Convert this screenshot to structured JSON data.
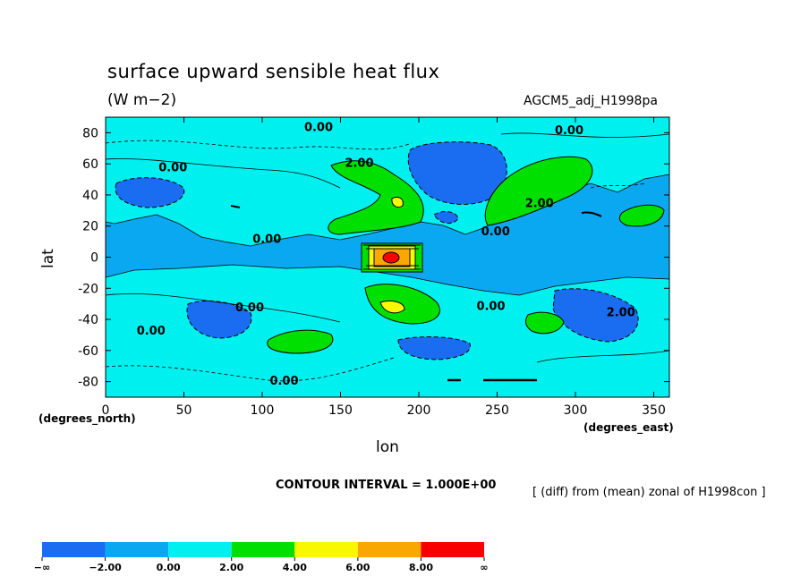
{
  "title": "surface upward sensible heat flux",
  "units": "(W m−2)",
  "run_name": "AGCM5_adj_H1998pa",
  "x_name": "lon",
  "x_unit": "(degrees_east)",
  "y_name": "lat",
  "y_unit": "(degrees_north)",
  "contour_interval_text": "CONTOUR INTERVAL = 1.000E+00",
  "note": "[ (diff) from (mean) zonal of H1998con ]",
  "chart_data": {
    "type": "heatmap",
    "title": "surface upward sensible heat flux",
    "units": "W m−2",
    "xlabel": "lon",
    "ylabel": "lat",
    "xlim": [
      0,
      360
    ],
    "ylim": [
      -90,
      90
    ],
    "x_ticks": [
      0,
      50,
      100,
      150,
      200,
      250,
      300,
      350
    ],
    "y_ticks": [
      80,
      60,
      40,
      20,
      0,
      -20,
      -40,
      -60,
      -80
    ],
    "contour_interval": 1.0,
    "contour_labels": [
      {
        "text": "0.00",
        "lon": 136,
        "lat": 84
      },
      {
        "text": "0.00",
        "lon": 296,
        "lat": 82
      },
      {
        "text": "0.00",
        "lon": 43,
        "lat": 58
      },
      {
        "text": "2.00",
        "lon": 162,
        "lat": 61
      },
      {
        "text": "2.00",
        "lon": 277,
        "lat": 35
      },
      {
        "text": "0.00",
        "lon": 103,
        "lat": 12
      },
      {
        "text": "0.00",
        "lon": 249,
        "lat": 17
      },
      {
        "text": "0.00",
        "lon": 92,
        "lat": -32
      },
      {
        "text": "0.00",
        "lon": 246,
        "lat": -31
      },
      {
        "text": "2.00",
        "lon": 329,
        "lat": -35
      },
      {
        "text": "0.00",
        "lon": 29,
        "lat": -47
      },
      {
        "text": "0.00",
        "lon": 114,
        "lat": -79
      }
    ],
    "colorbar": {
      "labels": [
        "−∞",
        "−2.00",
        "0.00",
        "2.00",
        "4.00",
        "6.00",
        "8.00",
        "∞"
      ],
      "colors": [
        "#1a6cf0",
        "#0aa8f0",
        "#00f0f0",
        "#00e000",
        "#f8f800",
        "#f8a800",
        "#f80000"
      ]
    }
  }
}
